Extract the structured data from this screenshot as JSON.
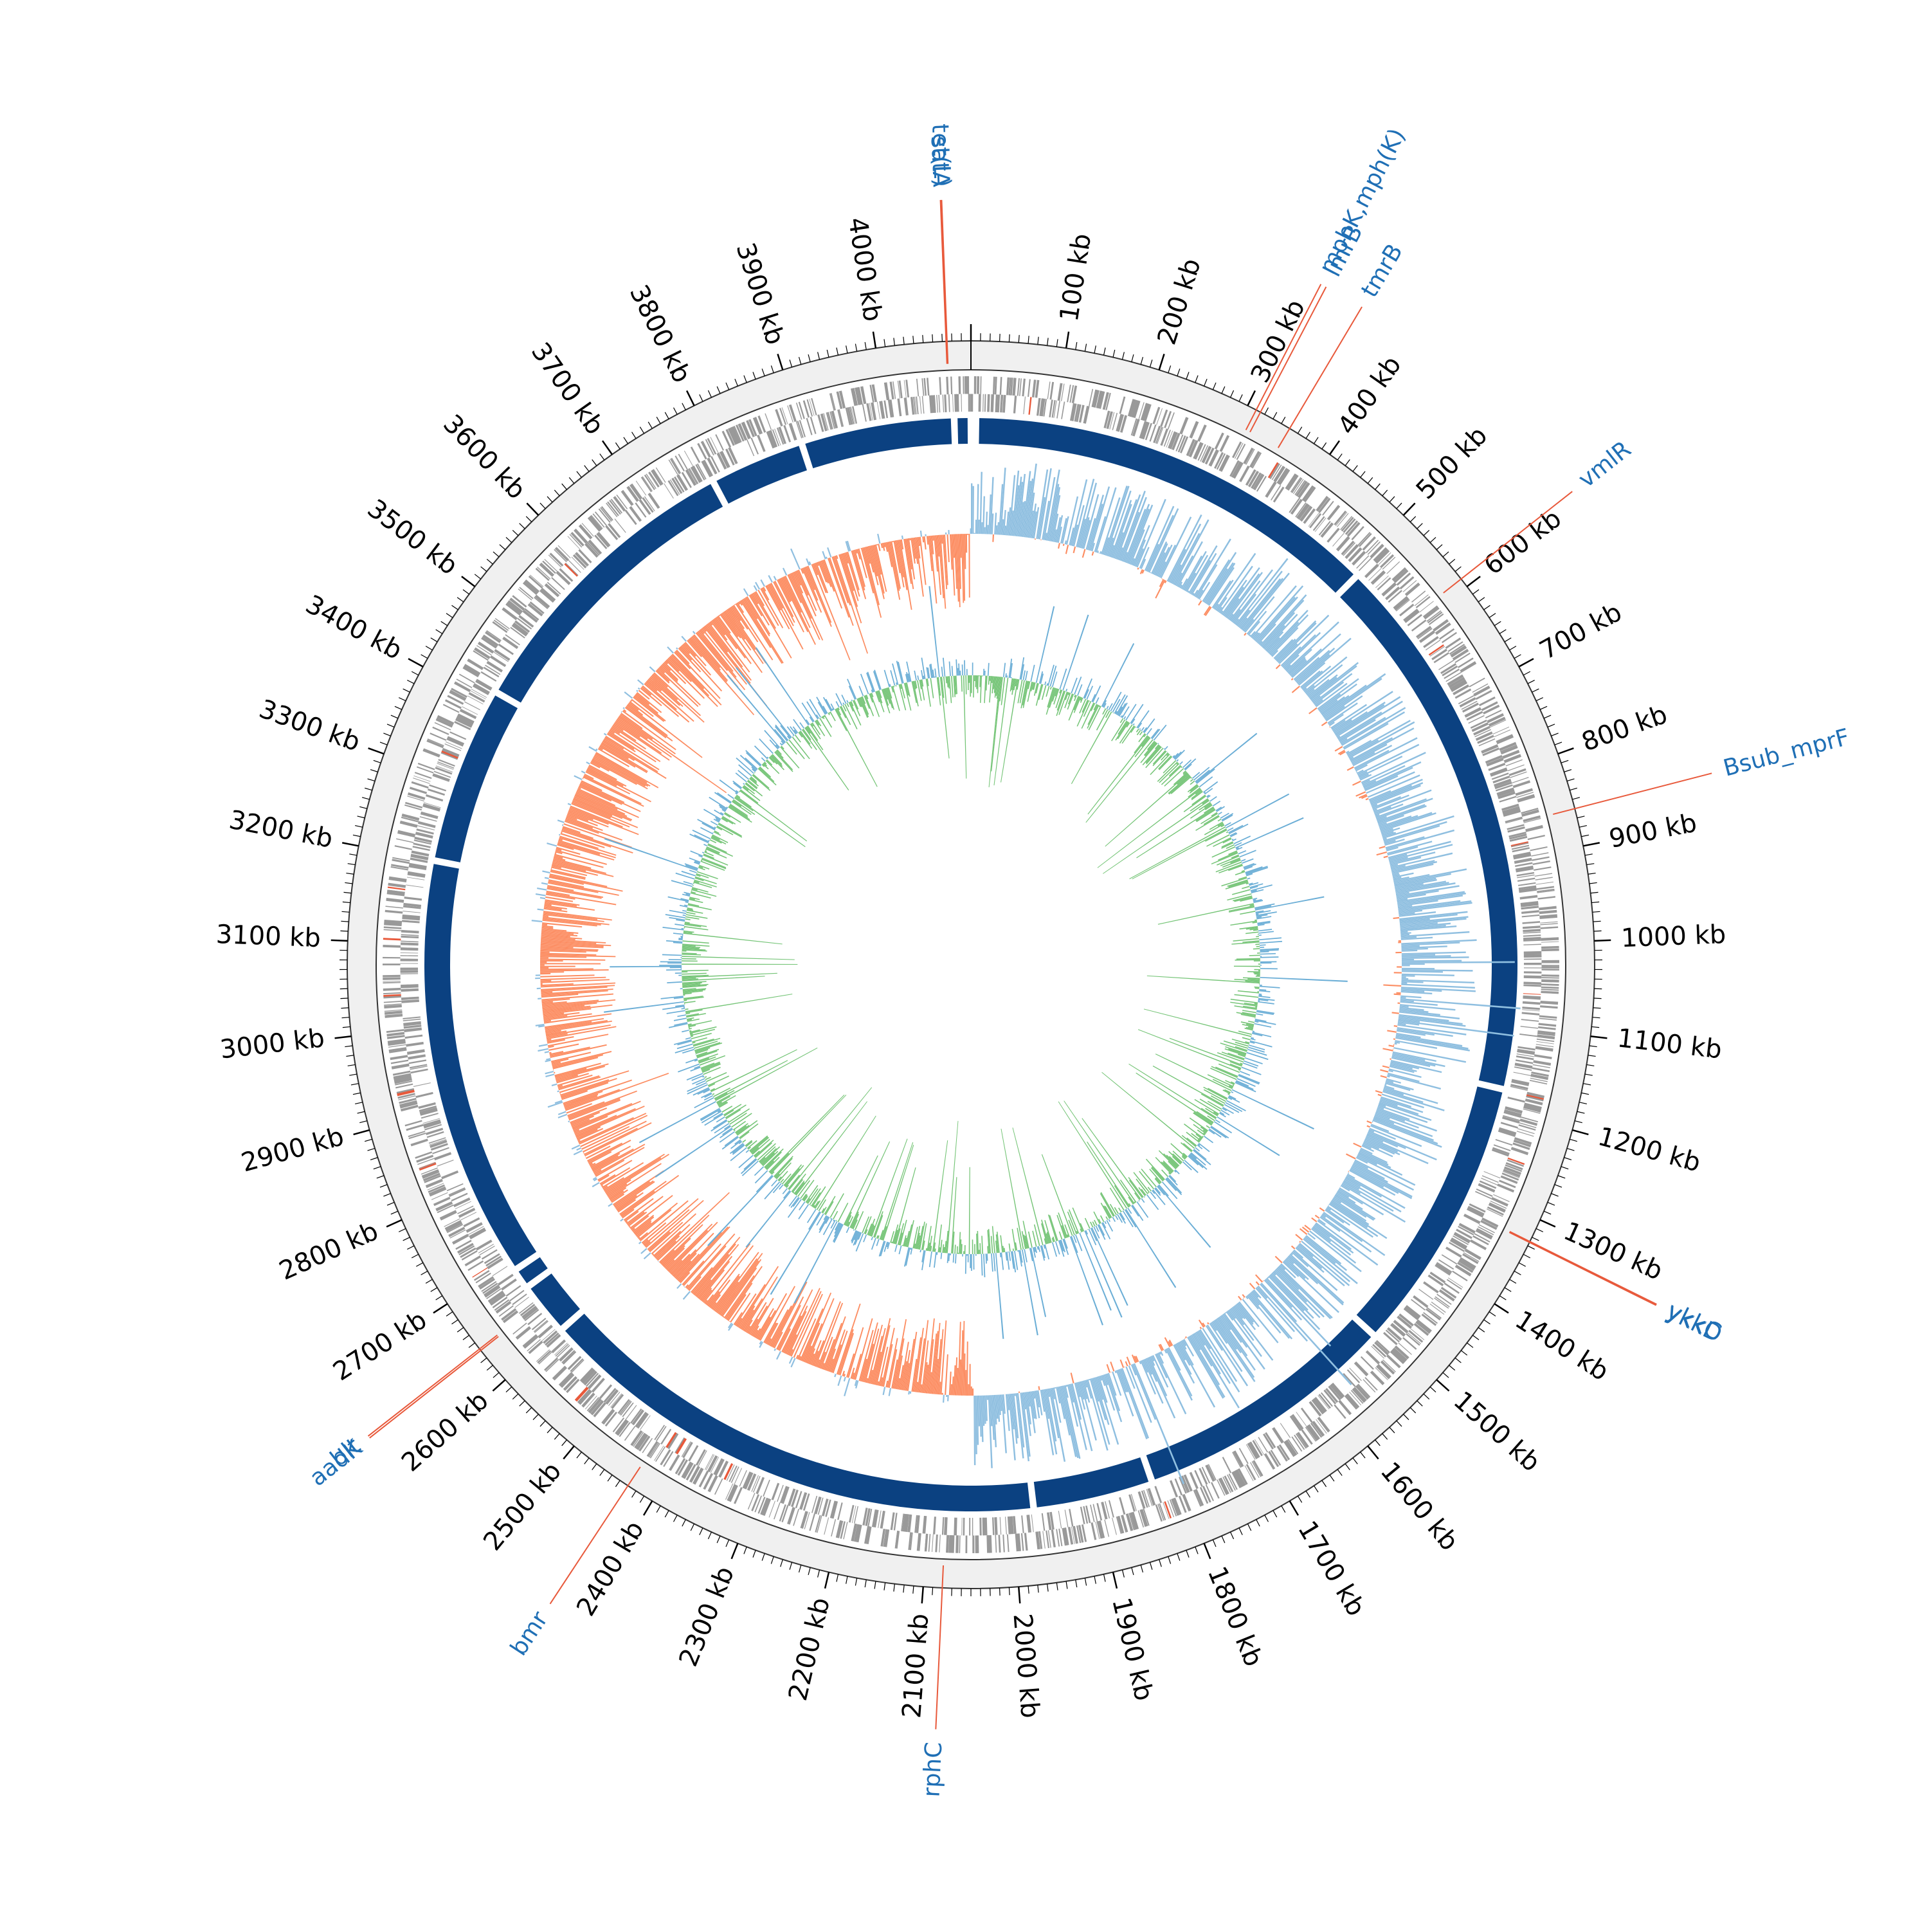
{
  "genome": {
    "length_kb": 4100
  },
  "colors": {
    "ring_background": "#f0f0f0",
    "ring_border": "#000000",
    "cds_gray": "#999999",
    "cds_highlight": "#e8593b",
    "contig_blue": "#0b4181",
    "gc_skew_positive": "#8fbfe0",
    "gc_skew_negative": "#fc8d62",
    "gc_content_blue": "#6baed6",
    "gc_content_green": "#74c476",
    "gene_label": "#1f6fb5",
    "leader_line": "#e8593b"
  },
  "scale_ticks": [
    {
      "kb": 100,
      "label": "100 kb"
    },
    {
      "kb": 200,
      "label": "200 kb"
    },
    {
      "kb": 300,
      "label": "300 kb"
    },
    {
      "kb": 400,
      "label": "400 kb"
    },
    {
      "kb": 500,
      "label": "500 kb"
    },
    {
      "kb": 600,
      "label": "600 kb"
    },
    {
      "kb": 700,
      "label": "700 kb"
    },
    {
      "kb": 800,
      "label": "800 kb"
    },
    {
      "kb": 900,
      "label": "900 kb"
    },
    {
      "kb": 1000,
      "label": "1000 kb"
    },
    {
      "kb": 1100,
      "label": "1100 kb"
    },
    {
      "kb": 1200,
      "label": "1200 kb"
    },
    {
      "kb": 1300,
      "label": "1300 kb"
    },
    {
      "kb": 1400,
      "label": "1400 kb"
    },
    {
      "kb": 1500,
      "label": "1500 kb"
    },
    {
      "kb": 1600,
      "label": "1600 kb"
    },
    {
      "kb": 1700,
      "label": "1700 kb"
    },
    {
      "kb": 1800,
      "label": "1800 kb"
    },
    {
      "kb": 1900,
      "label": "1900 kb"
    },
    {
      "kb": 2000,
      "label": "2000 kb"
    },
    {
      "kb": 2100,
      "label": "2100 kb"
    },
    {
      "kb": 2200,
      "label": "2200 kb"
    },
    {
      "kb": 2300,
      "label": "2300 kb"
    },
    {
      "kb": 2400,
      "label": "2400 kb"
    },
    {
      "kb": 2500,
      "label": "2500 kb"
    },
    {
      "kb": 2600,
      "label": "2600 kb"
    },
    {
      "kb": 2700,
      "label": "2700 kb"
    },
    {
      "kb": 2800,
      "label": "2800 kb"
    },
    {
      "kb": 2900,
      "label": "2900 kb"
    },
    {
      "kb": 3000,
      "label": "3000 kb"
    },
    {
      "kb": 3100,
      "label": "3100 kb"
    },
    {
      "kb": 3200,
      "label": "3200 kb"
    },
    {
      "kb": 3300,
      "label": "3300 kb"
    },
    {
      "kb": 3400,
      "label": "3400 kb"
    },
    {
      "kb": 3500,
      "label": "3500 kb"
    },
    {
      "kb": 3600,
      "label": "3600 kb"
    },
    {
      "kb": 3700,
      "label": "3700 kb"
    },
    {
      "kb": 3800,
      "label": "3800 kb"
    },
    {
      "kb": 3900,
      "label": "3900 kb"
    },
    {
      "kb": 4000,
      "label": "4000 kb"
    }
  ],
  "gene_annotations": [
    {
      "label": "tet(L)",
      "kb": 4075
    },
    {
      "label": "satA",
      "kb": 4074
    },
    {
      "label": "mphK,mph(K)",
      "kb": 310
    },
    {
      "label": "lmrB",
      "kb": 315
    },
    {
      "label": "tmrB",
      "kb": 350
    },
    {
      "label": "vmlR",
      "kb": 590
    },
    {
      "label": "Bsub_mprF",
      "kb": 860
    },
    {
      "label": "ykkC",
      "kb": 1325
    },
    {
      "label": "ykkD",
      "kb": 1326
    },
    {
      "label": "aadK",
      "kb": 2640
    },
    {
      "label": "blt",
      "kb": 2642
    },
    {
      "label": "bmr",
      "kb": 2430
    },
    {
      "label": "rphC",
      "kb": 2080
    }
  ],
  "contig_gaps_kb": [
    2,
    6,
    510,
    1175,
    1510,
    1830,
    1975,
    2600,
    2665,
    2690,
    3200,
    3415,
    3780,
    3895,
    4080
  ]
}
